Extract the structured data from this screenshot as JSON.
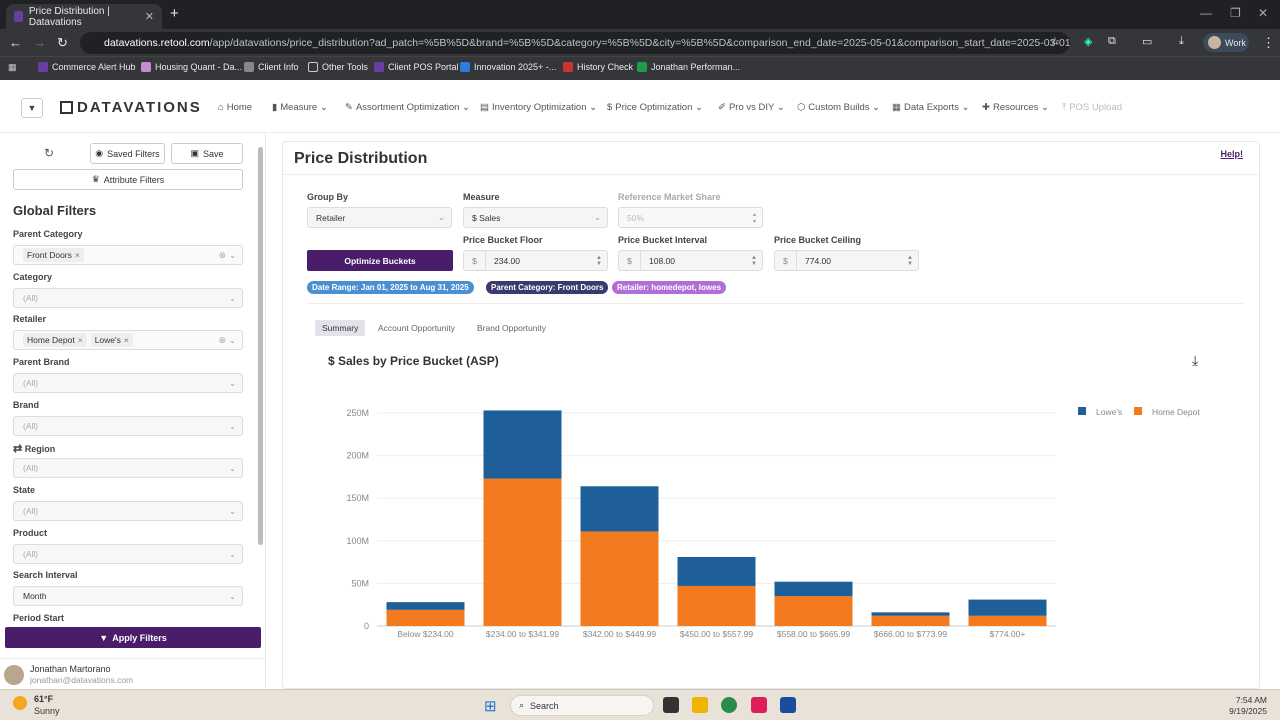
{
  "browser": {
    "tab_title": "Price Distribution | Datavations",
    "tab_close": "✕",
    "new_tab": "+",
    "url_host": "datavations.retool.com",
    "url_path": "/app/datavations/price_distribution?ad_patch=%5B%5D&brand=%5B%5D&category=%5B%5D&city=%5B%5D&comparison_end_date=2025-05-01&comparison_start_date=2025-03-01&distributor=%5...",
    "profile_label": "Work",
    "bookmarks": [
      "Commerce Alert Hub",
      "Housing Quant - Da...",
      "Client Info",
      "Other Tools",
      "Client POS Portal",
      "Innovation 2025+ -...",
      "History Check",
      "Jonathan Performan..."
    ]
  },
  "app": {
    "logo": "DATAVATIONS",
    "nav": [
      "Home",
      "Measure",
      "Assortment Optimization",
      "Inventory Optimization",
      "Price Optimization",
      "Pro vs DIY",
      "Custom Builds",
      "Data Exports",
      "Resources",
      "POS Upload"
    ]
  },
  "sidebar": {
    "saved_filters": "Saved Filters",
    "save": "Save",
    "attribute_filters": "Attribute Filters",
    "heading": "Global Filters",
    "parent_category": {
      "label": "Parent Category",
      "chips": [
        "Front Doors"
      ]
    },
    "category": {
      "label": "Category",
      "placeholder": "(All)"
    },
    "retailer": {
      "label": "Retailer",
      "chips": [
        "Home Depot",
        "Lowe's"
      ]
    },
    "parent_brand": {
      "label": "Parent Brand",
      "placeholder": "(All)"
    },
    "brand": {
      "label": "Brand",
      "placeholder": "(All)"
    },
    "region": {
      "label": "Region",
      "placeholder": "(All)"
    },
    "state": {
      "label": "State",
      "placeholder": "(All)"
    },
    "product": {
      "label": "Product",
      "placeholder": "(All)"
    },
    "search_interval": {
      "label": "Search Interval",
      "value": "Month"
    },
    "period_start": {
      "label": "Period Start"
    },
    "apply": "Apply Filters",
    "user": {
      "name": "Jonathan Martorano",
      "email": "jonathan@datavations.com"
    }
  },
  "main": {
    "title": "Price Distribution",
    "help": "Help!",
    "group_by": {
      "label": "Group By",
      "value": "Retailer"
    },
    "measure": {
      "label": "Measure",
      "value": "$ Sales"
    },
    "ref_share": {
      "label": "Reference Market Share",
      "value": "50%"
    },
    "optimize": "Optimize Buckets",
    "floor": {
      "label": "Price Bucket Floor",
      "prefix": "$",
      "value": "234.00"
    },
    "interval": {
      "label": "Price Bucket Interval",
      "prefix": "$",
      "value": "108.00"
    },
    "ceiling": {
      "label": "Price Bucket Ceiling",
      "prefix": "$",
      "value": "774.00"
    },
    "pills": [
      "Date Range: Jan 01, 2025 to Aug 31, 2025",
      "Parent Category: Front Doors",
      "Retailer: homedepot, lowes"
    ],
    "tabs": [
      "Summary",
      "Account Opportunity",
      "Brand Opportunity"
    ],
    "chart_title": "$ Sales by Price Bucket (ASP)"
  },
  "colors": {
    "lowes": "#1f5f99",
    "homedepot": "#f47a1f",
    "brand": "#4a1d6a"
  },
  "chart_data": {
    "type": "bar",
    "stacked": true,
    "title": "$ Sales by Price Bucket (ASP)",
    "categories": [
      "Below $234.00",
      "$234.00 to $341.99",
      "$342.00 to $449.99",
      "$450.00 to $557.99",
      "$558.00 to $665.99",
      "$666.00 to $773.99",
      "$774.00+"
    ],
    "series": [
      {
        "name": "Home Depot",
        "values": [
          19,
          173,
          111,
          47,
          35,
          12,
          12
        ]
      },
      {
        "name": "Lowe's",
        "values": [
          9,
          80,
          53,
          34,
          17,
          4,
          19
        ]
      }
    ],
    "ylim": [
      0,
      250
    ],
    "yticks": [
      "0",
      "50M",
      "100M",
      "150M",
      "200M",
      "250M"
    ],
    "legend": [
      "Lowe's",
      "Home Depot"
    ],
    "legend_position": "top-right"
  },
  "taskbar": {
    "temp": "61°F",
    "weather": "Sunny",
    "search": "Search",
    "time": "7:54 AM",
    "date": "9/19/2025"
  }
}
